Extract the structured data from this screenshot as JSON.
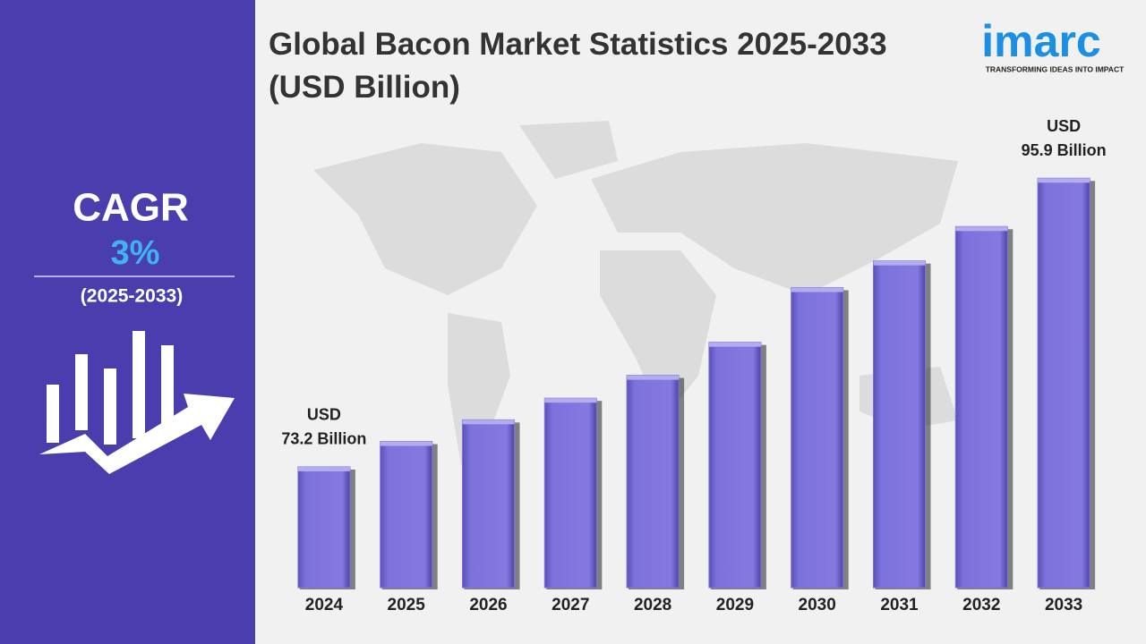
{
  "chart_data": {
    "type": "bar",
    "title": "Global Bacon Market Statistics 2025-2033 (USD Billion)",
    "categories": [
      "2024",
      "2025",
      "2026",
      "2027",
      "2028",
      "2029",
      "2030",
      "2031",
      "2032",
      "2033"
    ],
    "values": [
      73.2,
      75.2,
      76.9,
      78.6,
      80.4,
      83.0,
      87.3,
      89.4,
      92.1,
      95.9
    ],
    "value_labels": [
      [
        "USD",
        "73.2 Billion"
      ],
      null,
      null,
      null,
      null,
      null,
      null,
      null,
      null,
      [
        "USD",
        "95.9 Billion"
      ]
    ],
    "color": "#7d72dc",
    "ylim": [
      63.7,
      100
    ]
  },
  "cagr": {
    "label": "CAGR",
    "value": "3%",
    "period": "(2025-2033)"
  },
  "logo": {
    "name": "imarc",
    "tagline": "TRANSFORMING IDEAS INTO IMPACT"
  }
}
